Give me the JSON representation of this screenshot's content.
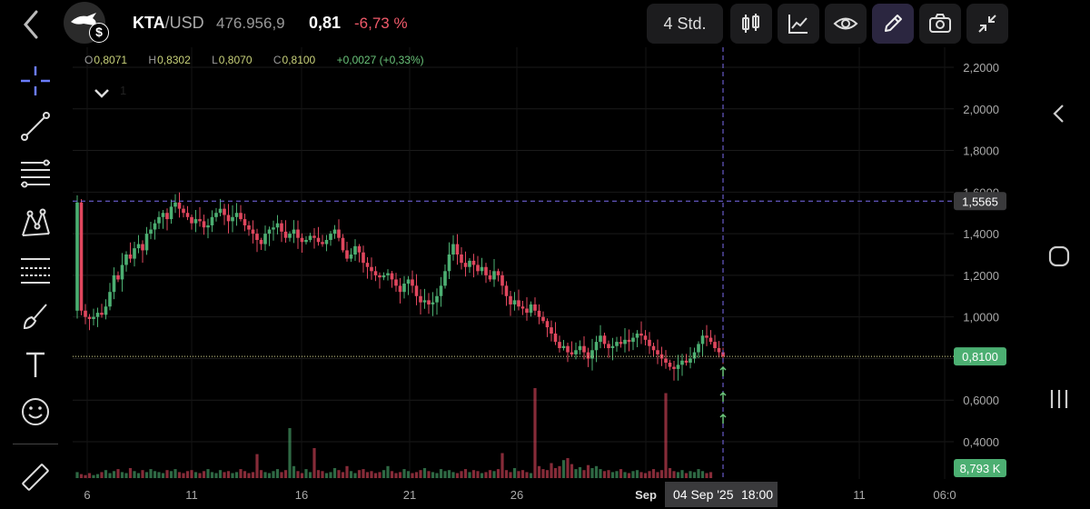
{
  "header": {
    "pair_base": "KTA",
    "pair_quote": "/USD",
    "volume": "476.956,9",
    "price": "0,81",
    "change": "-6,73 %",
    "timeframe": "4 Std."
  },
  "ohlc": {
    "o_label": "O",
    "o_value": "0,8071",
    "h_label": "H",
    "h_value": "0,8302",
    "l_label": "L",
    "l_value": "0,8070",
    "c_label": "C",
    "c_value": "0,8100",
    "change": "+0,0027 (+0,33%)"
  },
  "collapse_count": "1",
  "toolbar_icons": [
    "candles-icon",
    "chart-line-icon",
    "eye-icon",
    "pencil-icon",
    "camera-icon",
    "collapse-icon"
  ],
  "left_tools": [
    "crosshair-icon",
    "trend-line-icon",
    "fib-lines-icon",
    "pattern-icon",
    "projection-icon",
    "brush-icon",
    "text-icon",
    "emoji-icon",
    "ruler-icon"
  ],
  "colors": {
    "up": "#4caf72",
    "down": "#e0475e",
    "crosshair": "#7b6cf0",
    "accent_bg": "#2b2640"
  },
  "chart_data": {
    "type": "candlestick",
    "y_ticks": [
      "2,2000",
      "2,0000",
      "1,8000",
      "1,6000",
      "1,4000",
      "1,2000",
      "1,0000",
      "0,8000",
      "0,6000",
      "0,4000"
    ],
    "y_tick_values": [
      2.2,
      2.0,
      1.8,
      1.6,
      1.4,
      1.2,
      1.0,
      0.8,
      0.6,
      0.4
    ],
    "ylim": [
      0.2,
      2.3
    ],
    "x_ticks": [
      "6",
      "11",
      "16",
      "21",
      "26",
      "Sep",
      "11",
      "06:0"
    ],
    "crosshair_price": "1,5565",
    "crosshair_price_value": 1.5565,
    "last_price": "0,8100",
    "last_price_value": 0.81,
    "volume_label": "8,793 K",
    "crosshair_time_date": "04 Sep '25",
    "crosshair_time_hour": "18:00",
    "close_series": [
      1.55,
      1.03,
      1.0,
      0.99,
      1.0,
      1.02,
      1.01,
      1.05,
      1.12,
      1.2,
      1.18,
      1.25,
      1.3,
      1.28,
      1.33,
      1.35,
      1.32,
      1.4,
      1.42,
      1.45,
      1.48,
      1.5,
      1.47,
      1.53,
      1.55,
      1.52,
      1.5,
      1.48,
      1.45,
      1.47,
      1.46,
      1.43,
      1.44,
      1.48,
      1.5,
      1.52,
      1.49,
      1.46,
      1.48,
      1.5,
      1.47,
      1.44,
      1.42,
      1.4,
      1.37,
      1.35,
      1.4,
      1.42,
      1.43,
      1.45,
      1.41,
      1.38,
      1.4,
      1.42,
      1.38,
      1.36,
      1.37,
      1.39,
      1.38,
      1.36,
      1.35,
      1.37,
      1.4,
      1.42,
      1.38,
      1.32,
      1.28,
      1.3,
      1.34,
      1.31,
      1.26,
      1.24,
      1.22,
      1.2,
      1.19,
      1.2,
      1.21,
      1.18,
      1.15,
      1.12,
      1.16,
      1.18,
      1.15,
      1.1,
      1.07,
      1.08,
      1.06,
      1.07,
      1.1,
      1.15,
      1.22,
      1.3,
      1.35,
      1.3,
      1.26,
      1.24,
      1.27,
      1.25,
      1.22,
      1.24,
      1.2,
      1.18,
      1.22,
      1.2,
      1.15,
      1.1,
      1.06,
      1.08,
      1.05,
      1.04,
      1.02,
      1.06,
      1.03,
      1.0,
      0.98,
      0.95,
      0.92,
      0.88,
      0.85,
      0.86,
      0.83,
      0.82,
      0.84,
      0.86,
      0.83,
      0.8,
      0.84,
      0.88,
      0.91,
      0.87,
      0.85,
      0.86,
      0.88,
      0.87,
      0.89,
      0.88,
      0.9,
      0.92,
      0.91,
      0.89,
      0.86,
      0.84,
      0.82,
      0.8,
      0.78,
      0.76,
      0.75,
      0.77,
      0.79,
      0.78,
      0.8,
      0.83,
      0.87,
      0.91,
      0.9,
      0.88,
      0.85,
      0.83,
      0.81
    ],
    "volume_series": [
      0.06,
      0.04,
      0.03,
      0.05,
      0.03,
      0.04,
      0.06,
      0.08,
      0.05,
      0.07,
      0.09,
      0.06,
      0.05,
      0.1,
      0.07,
      0.05,
      0.08,
      0.06,
      0.09,
      0.07,
      0.06,
      0.05,
      0.08,
      0.07,
      0.09,
      0.06,
      0.05,
      0.07,
      0.08,
      0.06,
      0.05,
      0.07,
      0.09,
      0.06,
      0.05,
      0.08,
      0.06,
      0.07,
      0.05,
      0.06,
      0.09,
      0.07,
      0.05,
      0.06,
      0.24,
      0.08,
      0.06,
      0.05,
      0.07,
      0.09,
      0.06,
      0.08,
      0.5,
      0.12,
      0.07,
      0.05,
      0.09,
      0.06,
      0.3,
      0.08,
      0.07,
      0.05,
      0.06,
      0.1,
      0.08,
      0.06,
      0.12,
      0.07,
      0.05,
      0.08,
      0.09,
      0.06,
      0.07,
      0.05,
      0.06,
      0.08,
      0.12,
      0.07,
      0.05,
      0.06,
      0.09,
      0.07,
      0.05,
      0.06,
      0.08,
      0.1,
      0.07,
      0.06,
      0.05,
      0.09,
      0.07,
      0.08,
      0.06,
      0.05,
      0.07,
      0.09,
      0.06,
      0.08,
      0.07,
      0.05,
      0.06,
      0.08,
      0.07,
      0.09,
      0.25,
      0.08,
      0.06,
      0.1,
      0.07,
      0.08,
      0.06,
      0.05,
      0.9,
      0.12,
      0.09,
      0.08,
      0.15,
      0.1,
      0.12,
      0.18,
      0.2,
      0.14,
      0.09,
      0.11,
      0.08,
      0.13,
      0.1,
      0.12,
      0.09,
      0.07,
      0.08,
      0.06,
      0.07,
      0.09,
      0.06,
      0.05,
      0.07,
      0.08,
      0.06,
      0.05,
      0.07,
      0.09,
      0.06,
      0.08,
      0.85,
      0.1,
      0.07,
      0.06,
      0.08,
      0.05,
      0.07,
      0.06,
      0.09,
      0.07,
      0.05,
      0.06
    ]
  }
}
